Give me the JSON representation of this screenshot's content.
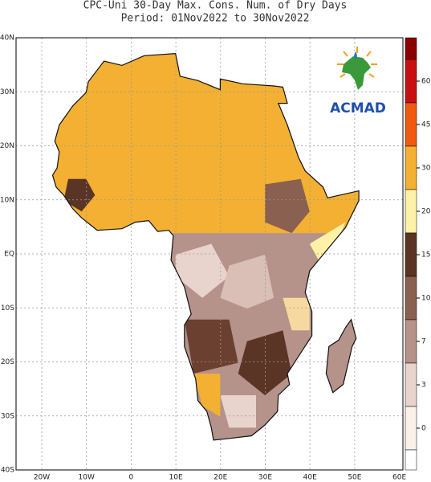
{
  "header": {
    "title": "CPC-Uni 30-Day Max. Cons. Num. of Dry Days",
    "subtitle": "Period: 01Nov2022 to 30Nov2022"
  },
  "map": {
    "lat_labels": [
      "40N",
      "30N",
      "20N",
      "10N",
      "EQ",
      "10S",
      "20S",
      "30S",
      "40S"
    ],
    "lon_labels": [
      "20W",
      "10W",
      "0",
      "10E",
      "20E",
      "30E",
      "40E",
      "50E",
      "60E"
    ]
  },
  "colorbar": {
    "ticks": [
      60,
      45,
      30,
      20,
      15,
      10,
      7,
      3,
      0
    ]
  },
  "logo": {
    "text": "ACMAD"
  }
}
